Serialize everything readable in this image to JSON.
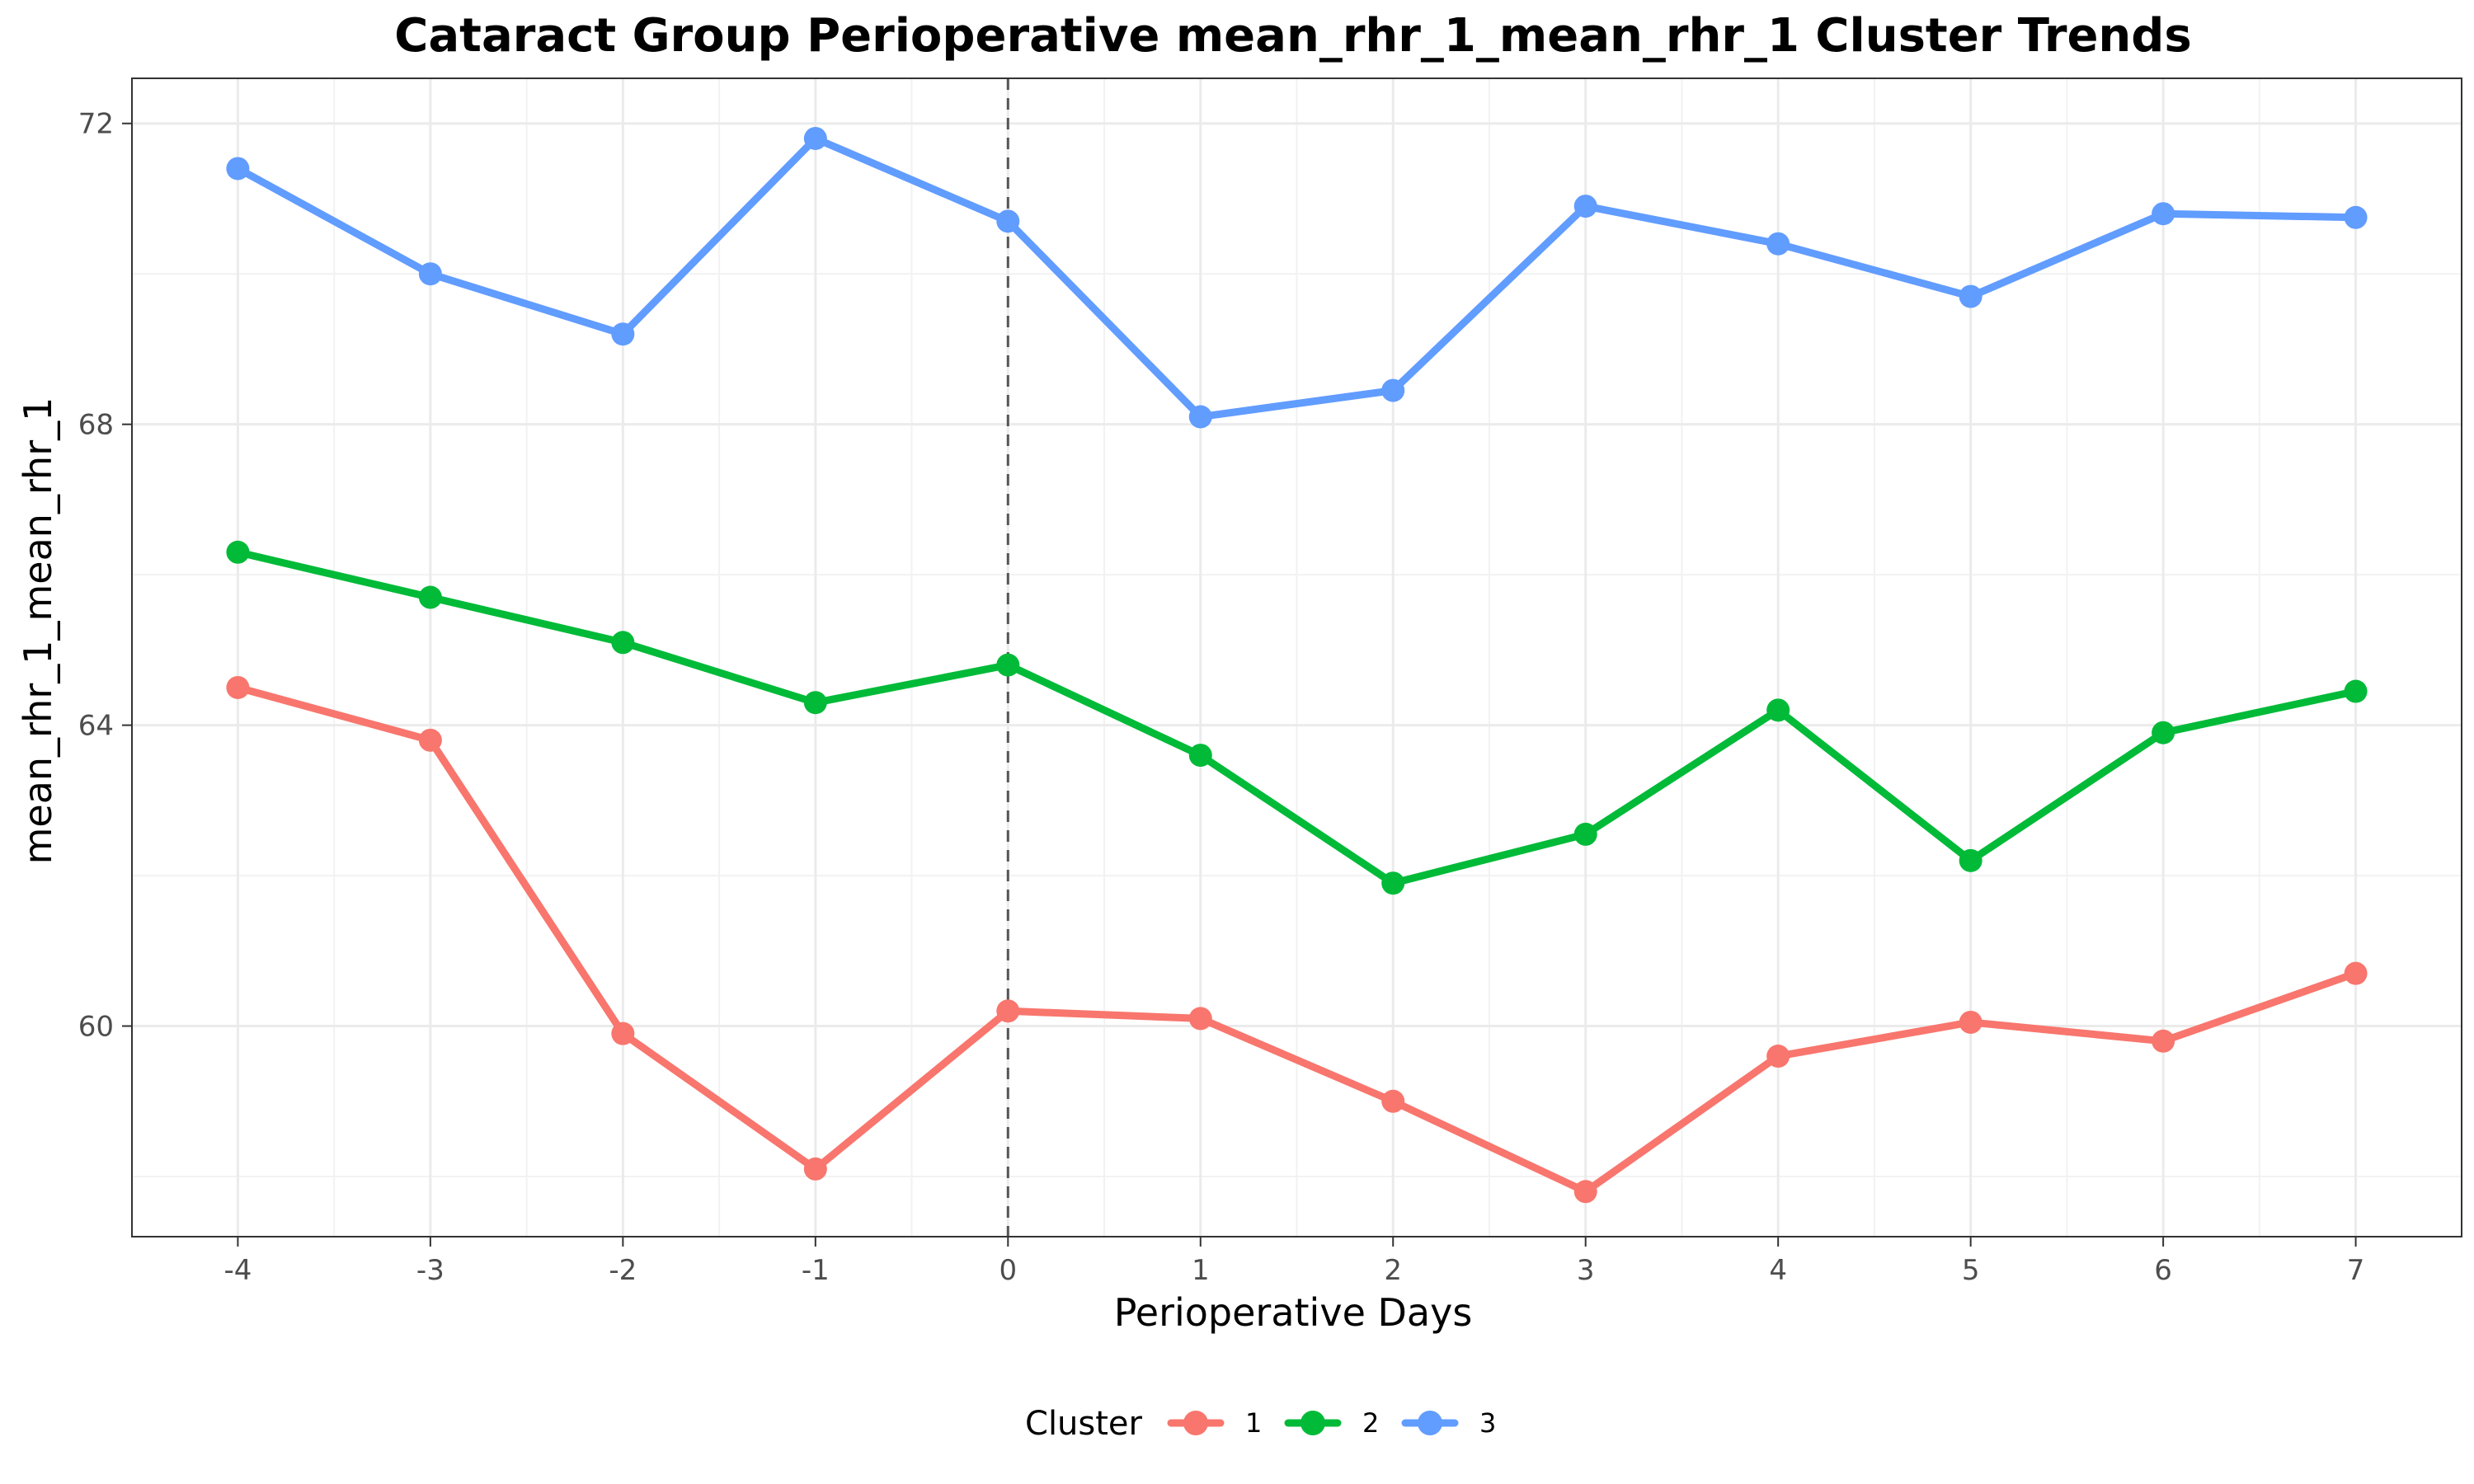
{
  "chart_data": {
    "type": "line",
    "title": "Cataract Group Perioperative mean_rhr_1_mean_rhr_1 Cluster Trends",
    "xlabel": "Perioperative Days",
    "ylabel": "mean_rhr_1_mean_rhr_1",
    "x": [
      -4,
      -3,
      -2,
      -1,
      0,
      1,
      2,
      3,
      4,
      5,
      6,
      7
    ],
    "x_tick_labels": [
      "-4",
      "-3",
      "-2",
      "-1",
      "0",
      "1",
      "2",
      "3",
      "4",
      "5",
      "6",
      "7"
    ],
    "y_ticks": [
      60,
      64,
      68,
      72
    ],
    "y_tick_labels": [
      "60",
      "64",
      "68",
      "72"
    ],
    "xlim": [
      -4.55,
      7.55
    ],
    "ylim": [
      57.2,
      72.6
    ],
    "reference_line_x": 0,
    "grid": true,
    "legend": {
      "title": "Cluster",
      "placement": "bottom"
    },
    "series": [
      {
        "name": "1",
        "color": "#F8766D",
        "values": [
          64.5,
          63.8,
          59.9,
          58.1,
          60.2,
          60.1,
          59.0,
          57.8,
          59.6,
          60.05,
          59.8,
          60.7
        ]
      },
      {
        "name": "2",
        "color": "#00BA38",
        "values": [
          66.3,
          65.7,
          65.1,
          64.3,
          64.8,
          63.6,
          61.9,
          62.55,
          64.2,
          62.2,
          63.9,
          64.45
        ]
      },
      {
        "name": "3",
        "color": "#619CFF",
        "values": [
          71.4,
          70.0,
          69.2,
          71.8,
          70.7,
          68.1,
          68.45,
          70.9,
          70.4,
          69.7,
          70.8,
          70.75
        ]
      }
    ]
  }
}
